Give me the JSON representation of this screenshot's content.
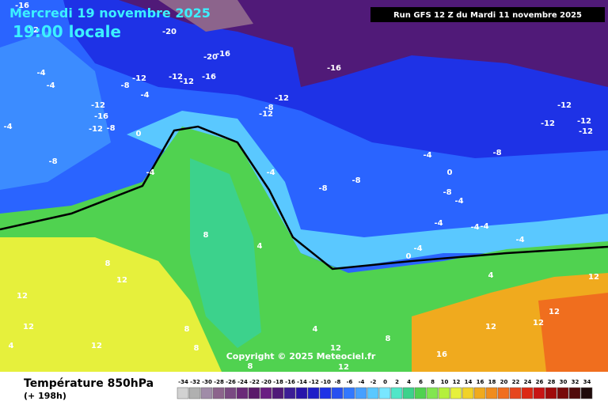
{
  "header": {
    "date": "Mercredi 19 novembre 2025",
    "time": "19:00 locale",
    "run": "Run GFS 12 Z du Mardi 11 novembre 2025"
  },
  "copyright": "Copyright © 2025 Meteociel.fr",
  "footer": {
    "title": "Température 850hPa",
    "lead": "(+ 198h)"
  },
  "scale": {
    "labels": [
      -34,
      -32,
      -30,
      -28,
      -26,
      -24,
      -22,
      -20,
      -18,
      -16,
      -14,
      -12,
      -10,
      -8,
      -6,
      -4,
      -2,
      0,
      2,
      4,
      6,
      8,
      10,
      12,
      14,
      16,
      18,
      20,
      22,
      24,
      26,
      28,
      30,
      32,
      34
    ],
    "colors": [
      "#d2d2d2",
      "#b0b0b0",
      "#a08ca8",
      "#8c648c",
      "#7a4a82",
      "#6a2a78",
      "#5a1a6a",
      "#6a1e82",
      "#501a78",
      "#3c1e96",
      "#2814aa",
      "#1e1ec8",
      "#1e32e6",
      "#2850f0",
      "#3278ff",
      "#46a0ff",
      "#5ac8ff",
      "#78e6ff",
      "#50e6c8",
      "#3cd28c",
      "#50d250",
      "#82e650",
      "#b4f03c",
      "#e6f03c",
      "#f0d228",
      "#f0aa1e",
      "#f08c1e",
      "#f06e1e",
      "#e6461e",
      "#dc2814",
      "#c81414",
      "#a00a0a",
      "#780a0a",
      "#500a0a",
      "#1e0a0a"
    ]
  },
  "map_labels": [
    -16,
    -12,
    -4,
    -4,
    -8,
    -12,
    -12,
    -12,
    -16,
    -20,
    -20,
    -16,
    -4,
    -12,
    -16,
    -12,
    -8,
    -8,
    -4,
    -4,
    -16,
    -12,
    -8,
    -12,
    0,
    -4,
    -8,
    -4,
    0,
    -8,
    -8,
    -4,
    -4,
    -4,
    -4,
    -8,
    -4,
    -4,
    -12,
    -12,
    -12,
    -12,
    8,
    4,
    8,
    12,
    12,
    12,
    12,
    8,
    4,
    0,
    4,
    8,
    12,
    12,
    16,
    12,
    12,
    12,
    12,
    4,
    8,
    8
  ]
}
